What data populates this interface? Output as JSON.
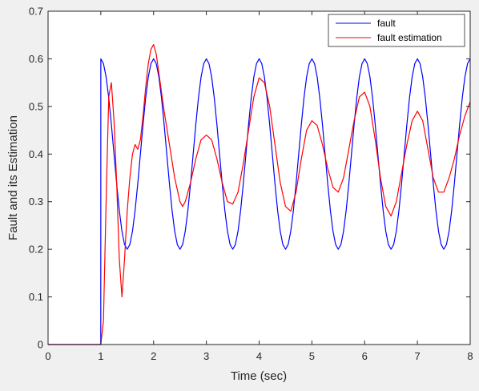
{
  "chart_data": {
    "type": "line",
    "xlabel": "Time (sec)",
    "ylabel": "Fault and its Estimation",
    "xlim": [
      0,
      8
    ],
    "ylim": [
      0,
      0.7
    ],
    "x_ticks": [
      0,
      1,
      2,
      3,
      4,
      5,
      6,
      7,
      8
    ],
    "y_ticks": [
      0,
      0.1,
      0.2,
      0.3,
      0.4,
      0.5,
      0.6,
      0.7
    ],
    "x_tick_labels": [
      "0",
      "1",
      "2",
      "3",
      "4",
      "5",
      "6",
      "7",
      "8"
    ],
    "y_tick_labels": [
      "0",
      "0.1",
      "0.2",
      "0.3",
      "0.4",
      "0.5",
      "0.6",
      "0.7"
    ],
    "grid": false,
    "legend_position": "top-right",
    "series": [
      {
        "name": "fault",
        "color": "#0000ff",
        "x": [
          0,
          0.999,
          1.0,
          1.05,
          1.1,
          1.15,
          1.2,
          1.25,
          1.3,
          1.35,
          1.4,
          1.45,
          1.5,
          1.55,
          1.6,
          1.65,
          1.7,
          1.75,
          1.8,
          1.85,
          1.9,
          1.95,
          2.0,
          2.05,
          2.1,
          2.15,
          2.2,
          2.25,
          2.3,
          2.35,
          2.4,
          2.45,
          2.5,
          2.55,
          2.6,
          2.65,
          2.7,
          2.75,
          2.8,
          2.85,
          2.9,
          2.95,
          3.0,
          3.05,
          3.1,
          3.15,
          3.2,
          3.25,
          3.3,
          3.35,
          3.4,
          3.45,
          3.5,
          3.55,
          3.6,
          3.65,
          3.7,
          3.75,
          3.8,
          3.85,
          3.9,
          3.95,
          4.0,
          4.05,
          4.1,
          4.15,
          4.2,
          4.25,
          4.3,
          4.35,
          4.4,
          4.45,
          4.5,
          4.55,
          4.6,
          4.65,
          4.7,
          4.75,
          4.8,
          4.85,
          4.9,
          4.95,
          5.0,
          5.05,
          5.1,
          5.15,
          5.2,
          5.25,
          5.3,
          5.35,
          5.4,
          5.45,
          5.5,
          5.55,
          5.6,
          5.65,
          5.7,
          5.75,
          5.8,
          5.85,
          5.9,
          5.95,
          6.0,
          6.05,
          6.1,
          6.15,
          6.2,
          6.25,
          6.3,
          6.35,
          6.4,
          6.45,
          6.5,
          6.55,
          6.6,
          6.65,
          6.7,
          6.75,
          6.8,
          6.85,
          6.9,
          6.95,
          7.0,
          7.05,
          7.1,
          7.15,
          7.2,
          7.25,
          7.3,
          7.35,
          7.4,
          7.45,
          7.5,
          7.55,
          7.6,
          7.65,
          7.7,
          7.75,
          7.8,
          7.85,
          7.9,
          7.95,
          8.0
        ],
        "y": [
          0,
          0,
          0.6,
          0.59,
          0.562,
          0.518,
          0.462,
          0.4,
          0.338,
          0.282,
          0.238,
          0.21,
          0.2,
          0.21,
          0.238,
          0.282,
          0.338,
          0.4,
          0.462,
          0.518,
          0.562,
          0.59,
          0.6,
          0.59,
          0.562,
          0.518,
          0.462,
          0.4,
          0.338,
          0.282,
          0.238,
          0.21,
          0.2,
          0.21,
          0.238,
          0.282,
          0.338,
          0.4,
          0.462,
          0.518,
          0.562,
          0.59,
          0.6,
          0.59,
          0.562,
          0.518,
          0.462,
          0.4,
          0.338,
          0.282,
          0.238,
          0.21,
          0.2,
          0.21,
          0.238,
          0.282,
          0.338,
          0.4,
          0.462,
          0.518,
          0.562,
          0.59,
          0.6,
          0.59,
          0.562,
          0.518,
          0.462,
          0.4,
          0.338,
          0.282,
          0.238,
          0.21,
          0.2,
          0.21,
          0.238,
          0.282,
          0.338,
          0.4,
          0.462,
          0.518,
          0.562,
          0.59,
          0.6,
          0.59,
          0.562,
          0.518,
          0.462,
          0.4,
          0.338,
          0.282,
          0.238,
          0.21,
          0.2,
          0.21,
          0.238,
          0.282,
          0.338,
          0.4,
          0.462,
          0.518,
          0.562,
          0.59,
          0.6,
          0.59,
          0.562,
          0.518,
          0.462,
          0.4,
          0.338,
          0.282,
          0.238,
          0.21,
          0.2,
          0.21,
          0.238,
          0.282,
          0.338,
          0.4,
          0.462,
          0.518,
          0.562,
          0.59,
          0.6,
          0.59,
          0.562,
          0.518,
          0.462,
          0.4,
          0.338,
          0.282,
          0.238,
          0.21,
          0.2,
          0.21,
          0.238,
          0.282,
          0.338,
          0.4,
          0.462,
          0.518,
          0.562,
          0.59,
          0.6
        ]
      },
      {
        "name": "fault estimation",
        "color": "#ff0000",
        "x": [
          0,
          1.0,
          1.05,
          1.1,
          1.15,
          1.2,
          1.25,
          1.3,
          1.35,
          1.4,
          1.45,
          1.5,
          1.55,
          1.6,
          1.65,
          1.7,
          1.75,
          1.8,
          1.85,
          1.9,
          1.95,
          2.0,
          2.05,
          2.1,
          2.2,
          2.3,
          2.4,
          2.5,
          2.55,
          2.6,
          2.7,
          2.8,
          2.9,
          3.0,
          3.1,
          3.2,
          3.3,
          3.4,
          3.5,
          3.6,
          3.7,
          3.8,
          3.9,
          4.0,
          4.1,
          4.2,
          4.3,
          4.4,
          4.5,
          4.6,
          4.7,
          4.8,
          4.9,
          5.0,
          5.1,
          5.2,
          5.3,
          5.4,
          5.5,
          5.6,
          5.7,
          5.8,
          5.9,
          6.0,
          6.1,
          6.2,
          6.3,
          6.4,
          6.5,
          6.6,
          6.7,
          6.8,
          6.9,
          7.0,
          7.1,
          7.2,
          7.3,
          7.4,
          7.5,
          7.6,
          7.7,
          7.8,
          7.9,
          8.0
        ],
        "y": [
          0,
          0,
          0.05,
          0.3,
          0.52,
          0.55,
          0.47,
          0.34,
          0.18,
          0.1,
          0.18,
          0.28,
          0.35,
          0.4,
          0.42,
          0.41,
          0.43,
          0.48,
          0.54,
          0.59,
          0.62,
          0.63,
          0.61,
          0.57,
          0.49,
          0.42,
          0.35,
          0.3,
          0.29,
          0.3,
          0.34,
          0.39,
          0.43,
          0.44,
          0.43,
          0.39,
          0.34,
          0.3,
          0.295,
          0.32,
          0.38,
          0.45,
          0.52,
          0.56,
          0.55,
          0.5,
          0.42,
          0.34,
          0.29,
          0.28,
          0.32,
          0.39,
          0.45,
          0.47,
          0.46,
          0.42,
          0.37,
          0.33,
          0.32,
          0.35,
          0.41,
          0.47,
          0.52,
          0.53,
          0.5,
          0.43,
          0.35,
          0.29,
          0.27,
          0.3,
          0.36,
          0.42,
          0.47,
          0.49,
          0.47,
          0.41,
          0.35,
          0.32,
          0.32,
          0.35,
          0.39,
          0.44,
          0.48,
          0.51
        ]
      }
    ]
  }
}
